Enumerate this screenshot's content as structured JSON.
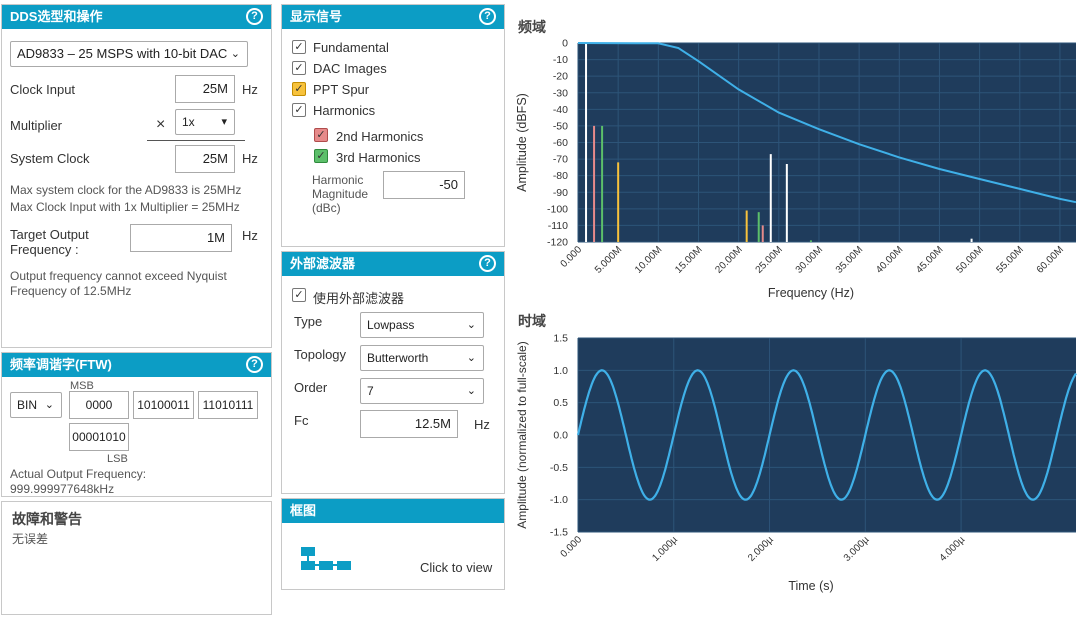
{
  "dds": {
    "title": "DDS选型和操作",
    "device": "AD9833 – 25 MSPS with 10-bit DAC",
    "clock_input_label": "Clock Input",
    "clock_input_value": "25M",
    "unit_hz": "Hz",
    "multiplier_label": "Multiplier",
    "multiplier_symbol": "×",
    "multiplier_value": "1x",
    "system_clock_label": "System Clock",
    "system_clock_value": "25M",
    "note1": "Max system clock for the AD9833 is 25MHz",
    "note2": "Max Clock Input with 1x Multiplier = 25MHz",
    "target_label_1": "Target Output",
    "target_label_2": "Frequency :",
    "target_value": "1M",
    "nyquist_note_1": "Output frequency cannot exceed Nyquist",
    "nyquist_note_2": "Frequency of 12.5MHz"
  },
  "ftw": {
    "title": "频率调谐字(FTW)",
    "format": "BIN",
    "msb_label": "MSB",
    "lsb_label": "LSB",
    "words": [
      "0000",
      "10100011",
      "11010111",
      "00001010"
    ],
    "actual_label": "Actual Output Frequency:",
    "actual_value": "999.999977648kHz"
  },
  "faults": {
    "title": "故障和警告",
    "message": "无误差"
  },
  "display": {
    "title": "显示信号",
    "fundamental": "Fundamental",
    "dac_images": "DAC Images",
    "ppt_spur": "PPT Spur",
    "harmonics": "Harmonics",
    "second": "2nd Harmonics",
    "third": "3rd Harmonics",
    "harm_mag_1": "Harmonic",
    "harm_mag_2": "Magnitude",
    "harm_mag_3": "(dBc)",
    "harm_mag_value": "-50"
  },
  "filter": {
    "title": "外部滤波器",
    "use_label": "使用外部滤波器",
    "type_label": "Type",
    "type_value": "Lowpass",
    "topology_label": "Topology",
    "topology_value": "Butterworth",
    "order_label": "Order",
    "order_value": "7",
    "fc_label": "Fc",
    "fc_value": "12.5M",
    "fc_unit": "Hz"
  },
  "block": {
    "title": "框图",
    "click": "Click to view"
  },
  "colors": {
    "header": "#0c9dc5",
    "plot_bg": "#1f3c5c",
    "trace": "#3fb0e8"
  },
  "chart_data": [
    {
      "type": "bar",
      "title": "频域",
      "xlabel": "Frequency (Hz)",
      "ylabel": "Amplitude (dBFS)",
      "xlim": [
        0,
        62000000
      ],
      "ylim": [
        -120,
        0
      ],
      "yticks": [
        0,
        -10,
        -20,
        -30,
        -40,
        -50,
        -60,
        -70,
        -80,
        -90,
        -100,
        -110,
        -120
      ],
      "xtick_labels": [
        "0.000",
        "5.000M",
        "10.00M",
        "15.00M",
        "20.00M",
        "25.00M",
        "30.00M",
        "35.00M",
        "40.00M",
        "45.00M",
        "50.00M",
        "55.00M",
        "60.00M"
      ],
      "xtick_values": [
        0,
        5000000,
        10000000,
        15000000,
        20000000,
        25000000,
        30000000,
        35000000,
        40000000,
        45000000,
        50000000,
        55000000,
        60000000
      ],
      "filter_response": {
        "x": [
          0,
          10000000,
          12500000,
          15000000,
          20000000,
          25000000,
          30000000,
          35000000,
          40000000,
          45000000,
          50000000,
          55000000,
          60000000,
          62000000
        ],
        "y": [
          0,
          -0.2,
          -3,
          -11,
          -28,
          -42,
          -52,
          -61,
          -69,
          -76,
          -82,
          -88,
          -94,
          -96
        ]
      },
      "spectral_lines": [
        {
          "x": 1000000,
          "y": 0,
          "color": "#ffffff"
        },
        {
          "x": 2000000,
          "y": -50,
          "color": "#e68a8a"
        },
        {
          "x": 3000000,
          "y": -50,
          "color": "#5cbf6a"
        },
        {
          "x": 5000000,
          "y": -72,
          "color": "#f7c23c"
        },
        {
          "x": 21000000,
          "y": -101,
          "color": "#f7c23c"
        },
        {
          "x": 22500000,
          "y": -102,
          "color": "#5cbf6a"
        },
        {
          "x": 23000000,
          "y": -110,
          "color": "#e68a8a"
        },
        {
          "x": 24000000,
          "y": -67,
          "color": "#ffffff"
        },
        {
          "x": 26000000,
          "y": -73,
          "color": "#ffffff"
        },
        {
          "x": 29000000,
          "y": -119,
          "color": "#5cbf6a"
        },
        {
          "x": 49000000,
          "y": -118,
          "color": "#ffffff"
        }
      ]
    },
    {
      "type": "line",
      "title": "时域",
      "xlabel": "Time (s)",
      "ylabel": "Amplitude (normalized to full-scale)",
      "xlim": [
        0,
        5.2e-06
      ],
      "ylim": [
        -1.5,
        1.5
      ],
      "yticks": [
        1.5,
        1.0,
        0.5,
        0.0,
        -0.5,
        -1.0,
        -1.5
      ],
      "ytick_labels": [
        "1.5",
        "1.0",
        "0.5",
        "0.0",
        "-0.5",
        "-1.0",
        "-1.5"
      ],
      "xtick_labels": [
        "0.000",
        "1.000µ",
        "2.000µ",
        "3.000µ",
        "4.000µ"
      ],
      "xtick_values": [
        0,
        1e-06,
        2e-06,
        3e-06,
        4e-06
      ],
      "frequency_hz": 1000000,
      "amplitude": 1.0
    }
  ]
}
